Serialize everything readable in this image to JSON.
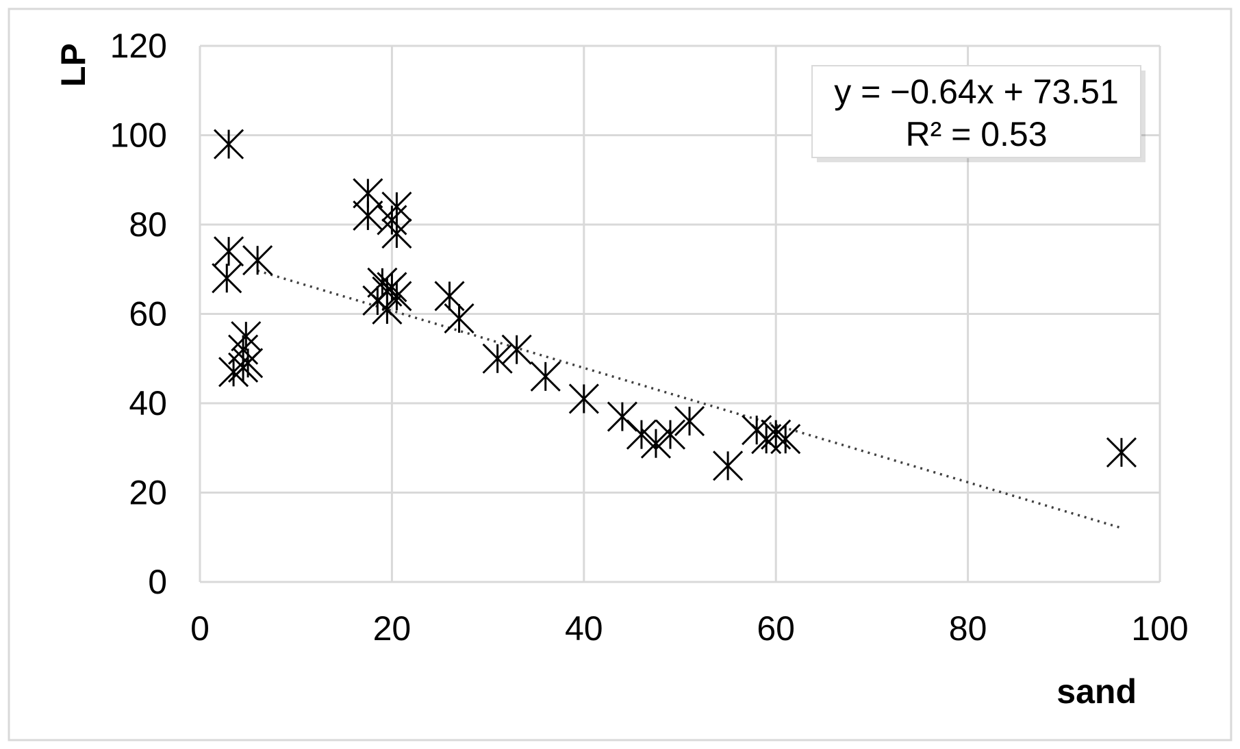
{
  "chart_data": {
    "type": "scatter",
    "title": "",
    "xlabel": "sand",
    "ylabel": "LP",
    "xlim": [
      0,
      100
    ],
    "ylim": [
      0,
      120
    ],
    "xticks": [
      0,
      20,
      40,
      60,
      80,
      100
    ],
    "yticks": [
      0,
      20,
      40,
      60,
      80,
      100,
      120
    ],
    "grid": true,
    "marker": "asterisk",
    "marker_color": "#000000",
    "grid_color": "#d9d9d9",
    "series": [
      {
        "points": [
          [
            3,
            98
          ],
          [
            3,
            74
          ],
          [
            2.8,
            68
          ],
          [
            3.5,
            47
          ],
          [
            4.5,
            48
          ],
          [
            4.8,
            55
          ],
          [
            4.5,
            52
          ],
          [
            5,
            49
          ],
          [
            6,
            72
          ],
          [
            17.5,
            87
          ],
          [
            17.5,
            82
          ],
          [
            20.5,
            84
          ],
          [
            20,
            81
          ],
          [
            20.5,
            78
          ],
          [
            19,
            67
          ],
          [
            19.5,
            65
          ],
          [
            20,
            66
          ],
          [
            20.5,
            64
          ],
          [
            18.5,
            63
          ],
          [
            19.5,
            61
          ],
          [
            26,
            64
          ],
          [
            27,
            59
          ],
          [
            31,
            50
          ],
          [
            33,
            52
          ],
          [
            36,
            46
          ],
          [
            40,
            41
          ],
          [
            44,
            37
          ],
          [
            46,
            33
          ],
          [
            47.5,
            31
          ],
          [
            49,
            33
          ],
          [
            51,
            36
          ],
          [
            55,
            26
          ],
          [
            58,
            34
          ],
          [
            59,
            32
          ],
          [
            60,
            33
          ],
          [
            61,
            32
          ],
          [
            96,
            29
          ]
        ]
      }
    ],
    "trendline": {
      "type": "linear",
      "style": "dotted",
      "slope": -0.64,
      "intercept": 73.51,
      "x_range": [
        6,
        96
      ],
      "equation_label": "y = −0.64x + 73.51",
      "r2_label": "R² = 0.53",
      "label_position": "top-right"
    }
  }
}
